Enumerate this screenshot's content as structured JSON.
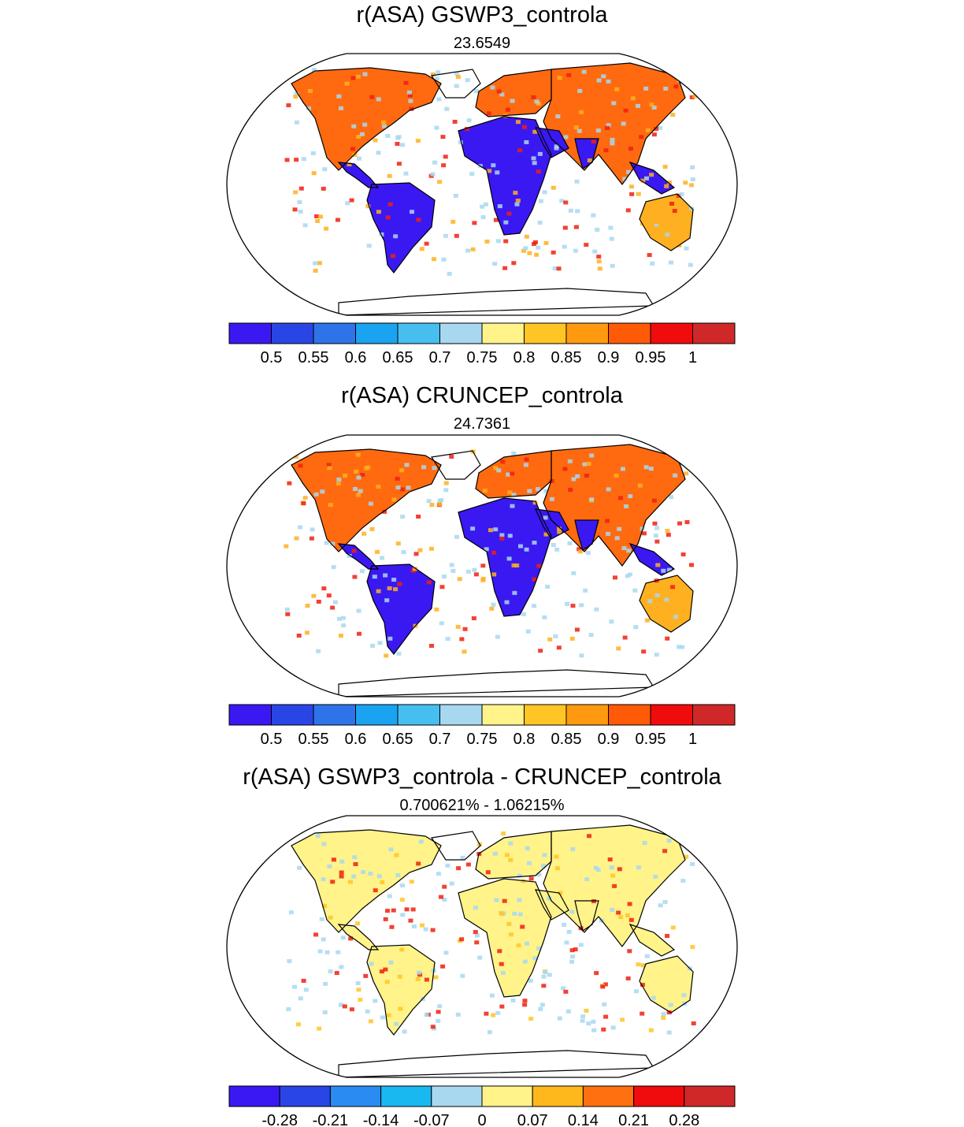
{
  "panels": [
    {
      "title": "r(ASA) GSWP3_controla",
      "subtitle": "23.6549",
      "colorbar": {
        "colors": [
          "#3a18f2",
          "#2a45e6",
          "#2e74e8",
          "#1aa3f0",
          "#46bff0",
          "#a8d8f0",
          "#fff38a",
          "#ffc524",
          "#ff9a10",
          "#ff5a08",
          "#f00c0c",
          "#d02828"
        ],
        "labels": [
          "0.5",
          "0.55",
          "0.6",
          "0.65",
          "0.7",
          "0.75",
          "0.8",
          "0.85",
          "0.9",
          "0.95",
          "1"
        ]
      }
    },
    {
      "title": "r(ASA) CRUNCEP_controla",
      "subtitle": "24.7361",
      "colorbar": {
        "colors": [
          "#3a18f2",
          "#2a45e6",
          "#2e74e8",
          "#1aa3f0",
          "#46bff0",
          "#a8d8f0",
          "#fff38a",
          "#ffc524",
          "#ff9a10",
          "#ff5a08",
          "#f00c0c",
          "#d02828"
        ],
        "labels": [
          "0.5",
          "0.55",
          "0.6",
          "0.65",
          "0.7",
          "0.75",
          "0.8",
          "0.85",
          "0.9",
          "0.95",
          "1"
        ]
      }
    },
    {
      "title": "r(ASA) GSWP3_controla - CRUNCEP_controla",
      "subtitle": "0.700621% - 1.06215%",
      "colorbar": {
        "colors": [
          "#3a18f2",
          "#2a45e6",
          "#2a8cf0",
          "#1ab8f0",
          "#a8d8f0",
          "#fff38a",
          "#ffb81c",
          "#ff7010",
          "#f00c0c",
          "#d02828"
        ],
        "labels": [
          "-0.28",
          "-0.21",
          "-0.14",
          "-0.07",
          "0",
          "0.07",
          "0.14",
          "0.21",
          "0.28"
        ]
      }
    }
  ],
  "map_palette": {
    "panel1": {
      "land": "#ff6a10",
      "hot": "#f02010",
      "warm": "#ffb020",
      "low": "#3a18f2",
      "light": "#a8d8f0"
    },
    "panel2": {
      "land": "#ff6a10",
      "hot": "#f02010",
      "warm": "#ffb020",
      "low": "#3a18f2",
      "light": "#a8d8f0"
    },
    "panel3": {
      "land": "#fff38a",
      "hot": "#f02010",
      "warm": "#ffc524",
      "low": "#3a18f2",
      "light": "#a8d8f0"
    }
  }
}
